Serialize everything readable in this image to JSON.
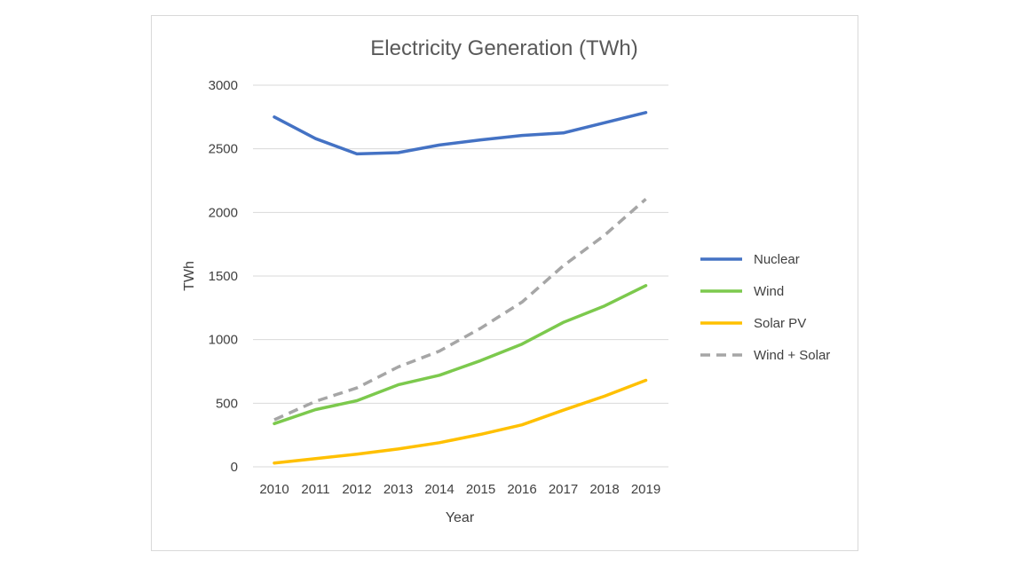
{
  "chart_data": {
    "type": "line",
    "title": "Electricity Generation (TWh)",
    "xlabel": "Year",
    "ylabel": "TWh",
    "ylim": [
      0,
      3000
    ],
    "yticks": [
      0,
      500,
      1000,
      1500,
      2000,
      2500,
      3000
    ],
    "grid": true,
    "legend_position": "right",
    "categories": [
      "2010",
      "2011",
      "2012",
      "2013",
      "2014",
      "2015",
      "2016",
      "2017",
      "2018",
      "2019"
    ],
    "series": [
      {
        "name": "Nuclear",
        "color": "#4472c4",
        "dash": false,
        "values": [
          2750,
          2580,
          2460,
          2470,
          2530,
          2570,
          2605,
          2625,
          2705,
          2785
        ]
      },
      {
        "name": "Wind",
        "color": "#7cc94d",
        "dash": false,
        "values": [
          340,
          450,
          520,
          645,
          720,
          835,
          965,
          1135,
          1265,
          1425
        ]
      },
      {
        "name": "Solar PV",
        "color": "#ffc000",
        "dash": false,
        "values": [
          30,
          65,
          100,
          140,
          190,
          255,
          330,
          445,
          555,
          680
        ]
      },
      {
        "name": "Wind + Solar",
        "color": "#a6a6a6",
        "dash": true,
        "values": [
          370,
          515,
          620,
          785,
          910,
          1090,
          1295,
          1580,
          1820,
          2105
        ]
      }
    ]
  }
}
